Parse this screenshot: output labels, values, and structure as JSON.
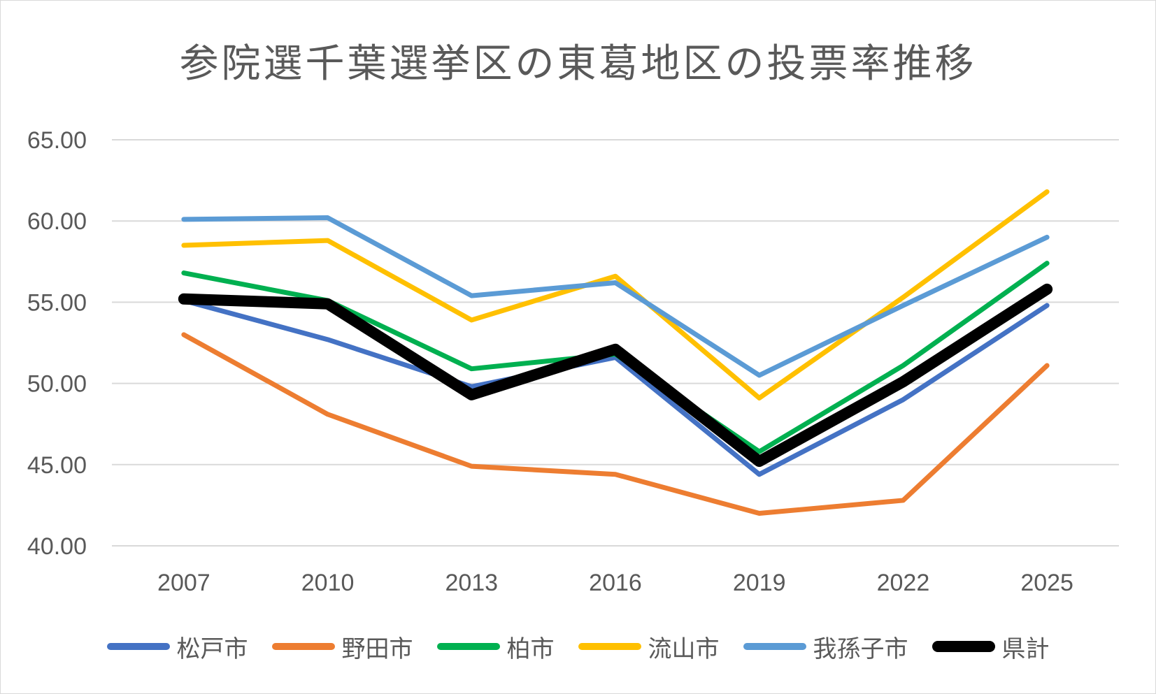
{
  "chart_data": {
    "type": "line",
    "title": "参院選千葉選挙区の東葛地区の投票率推移",
    "xlabel": "",
    "ylabel": "",
    "categories": [
      "2007",
      "2010",
      "2013",
      "2016",
      "2019",
      "2022",
      "2025"
    ],
    "ylim": [
      40,
      65
    ],
    "yticks": [
      "40.00",
      "45.00",
      "50.00",
      "55.00",
      "60.00",
      "65.00"
    ],
    "grid": true,
    "legend_position": "bottom",
    "series": [
      {
        "name": "松戸市",
        "color": "#4472c4",
        "values": [
          55.1,
          52.7,
          49.8,
          51.6,
          44.4,
          49.0,
          54.8
        ]
      },
      {
        "name": "野田市",
        "color": "#ed7d31",
        "values": [
          53.0,
          48.1,
          44.9,
          44.4,
          42.0,
          42.8,
          51.1
        ]
      },
      {
        "name": "柏市",
        "color": "#00b050",
        "values": [
          56.8,
          55.1,
          50.9,
          51.8,
          45.8,
          51.1,
          57.4
        ]
      },
      {
        "name": "流山市",
        "color": "#ffc000",
        "values": [
          58.5,
          58.8,
          53.9,
          56.6,
          49.1,
          55.3,
          61.8
        ]
      },
      {
        "name": "我孫子市",
        "color": "#5b9bd5",
        "values": [
          60.1,
          60.2,
          55.4,
          56.2,
          50.5,
          54.8,
          59.0
        ]
      },
      {
        "name": "県計",
        "color": "#000000",
        "values": [
          55.2,
          54.9,
          49.3,
          52.1,
          45.2,
          50.1,
          55.8
        ]
      }
    ]
  }
}
